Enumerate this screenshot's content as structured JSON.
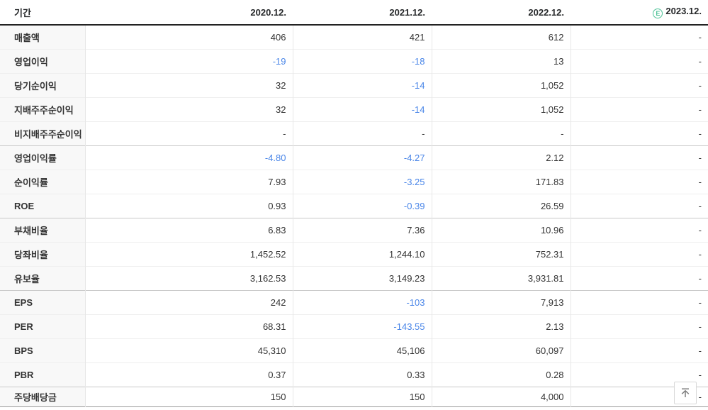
{
  "table": {
    "period_label": "기간",
    "columns": [
      {
        "label": "2020.12.",
        "estimate": false
      },
      {
        "label": "2021.12.",
        "estimate": false
      },
      {
        "label": "2022.12.",
        "estimate": false
      },
      {
        "label": "2023.12.",
        "estimate": true
      }
    ],
    "estimate_icon_letter": "E",
    "rows": [
      {
        "label": "매출액",
        "values": [
          "406",
          "421",
          "612",
          "-"
        ],
        "group_end": false
      },
      {
        "label": "영업이익",
        "values": [
          "-19",
          "-18",
          "13",
          "-"
        ],
        "group_end": false
      },
      {
        "label": "당기순이익",
        "values": [
          "32",
          "-14",
          "1,052",
          "-"
        ],
        "group_end": false
      },
      {
        "label": "지배주주순이익",
        "values": [
          "32",
          "-14",
          "1,052",
          "-"
        ],
        "group_end": false
      },
      {
        "label": "비지배주주순이익",
        "values": [
          "-",
          "-",
          "-",
          "-"
        ],
        "group_end": true
      },
      {
        "label": "영업이익률",
        "values": [
          "-4.80",
          "-4.27",
          "2.12",
          "-"
        ],
        "group_end": false
      },
      {
        "label": "순이익률",
        "values": [
          "7.93",
          "-3.25",
          "171.83",
          "-"
        ],
        "group_end": false
      },
      {
        "label": "ROE",
        "values": [
          "0.93",
          "-0.39",
          "26.59",
          "-"
        ],
        "group_end": true
      },
      {
        "label": "부채비율",
        "values": [
          "6.83",
          "7.36",
          "10.96",
          "-"
        ],
        "group_end": false
      },
      {
        "label": "당좌비율",
        "values": [
          "1,452.52",
          "1,244.10",
          "752.31",
          "-"
        ],
        "group_end": false
      },
      {
        "label": "유보율",
        "values": [
          "3,162.53",
          "3,149.23",
          "3,931.81",
          "-"
        ],
        "group_end": true
      },
      {
        "label": "EPS",
        "values": [
          "242",
          "-103",
          "7,913",
          "-"
        ],
        "group_end": false
      },
      {
        "label": "PER",
        "values": [
          "68.31",
          "-143.55",
          "2.13",
          "-"
        ],
        "group_end": false
      },
      {
        "label": "BPS",
        "values": [
          "45,310",
          "45,106",
          "60,097",
          "-"
        ],
        "group_end": false
      },
      {
        "label": "PBR",
        "values": [
          "0.37",
          "0.33",
          "0.28",
          "-"
        ],
        "group_end": true
      },
      {
        "label": "주당배당금",
        "values": [
          "150",
          "150",
          "4,000",
          "-"
        ],
        "group_end": false
      }
    ]
  },
  "colors": {
    "negative_value": "#4a86e8",
    "estimate_green": "#4fc398",
    "header_border": "#222222",
    "group_border": "#c9c9c9",
    "row_border": "#efefef",
    "label_bg": "#f8f8f8"
  },
  "scroll_top_button": {
    "icon": "arrow-up-to-top-icon"
  }
}
